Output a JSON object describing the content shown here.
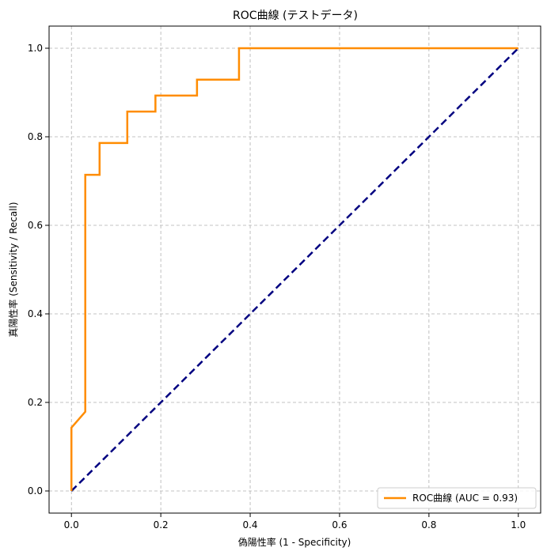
{
  "chart_data": {
    "type": "line",
    "title": "ROC曲線 (テストデータ)",
    "xlabel": "偽陽性率 (1 - Specificity)",
    "ylabel": "真陽性率 (Sensitivity / Recall)",
    "xlim": [
      -0.05,
      1.05
    ],
    "ylim": [
      -0.05,
      1.05
    ],
    "xticks": [
      "0.0",
      "0.2",
      "0.4",
      "0.6",
      "0.8",
      "1.0"
    ],
    "yticks": [
      "0.0",
      "0.2",
      "0.4",
      "0.6",
      "0.8",
      "1.0"
    ],
    "grid": true,
    "legend_position": "lower-right",
    "series": [
      {
        "name": "ROC曲線 (AUC = 0.93)",
        "color": "#ff8c00",
        "style": "solid",
        "x": [
          0.0,
          0.0,
          0.031,
          0.031,
          0.063,
          0.063,
          0.125,
          0.125,
          0.188,
          0.188,
          0.281,
          0.281,
          0.375,
          0.375,
          1.0
        ],
        "y": [
          0.0,
          0.143,
          0.179,
          0.714,
          0.714,
          0.786,
          0.786,
          0.857,
          0.857,
          0.893,
          0.893,
          0.929,
          0.929,
          1.0,
          1.0
        ]
      },
      {
        "color": "#000080",
        "style": "dashed",
        "x": [
          0.0,
          1.0
        ],
        "y": [
          0.0,
          1.0
        ]
      }
    ]
  }
}
